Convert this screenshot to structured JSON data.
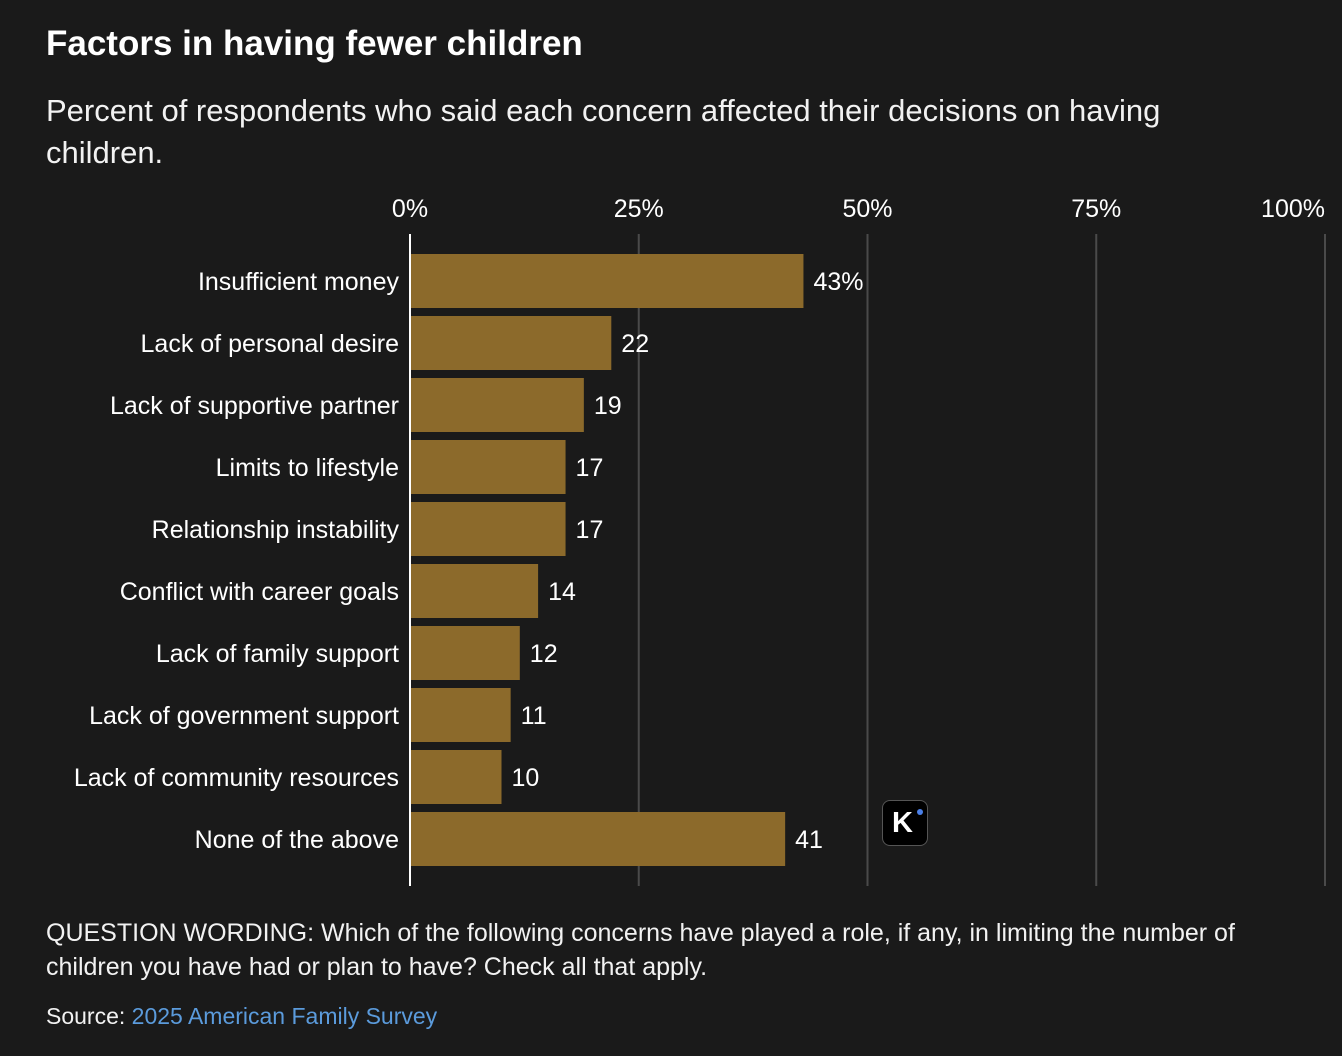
{
  "chart_data": {
    "type": "bar",
    "orientation": "horizontal",
    "title": "Factors in having fewer children",
    "subtitle": "Percent of respondents who said each concern affected their decisions on having children.",
    "categories": [
      "Insufficient money",
      "Lack of personal desire",
      "Lack of supportive partner",
      "Limits to lifestyle",
      "Relationship instability",
      "Conflict with career goals",
      "Lack of family support",
      "Lack of government support",
      "Lack of community resources",
      "None of the above"
    ],
    "values": [
      43,
      22,
      19,
      17,
      17,
      14,
      12,
      11,
      10,
      41
    ],
    "value_labels": [
      "43%",
      "22",
      "19",
      "17",
      "17",
      "14",
      "12",
      "11",
      "10",
      "41"
    ],
    "xlim": [
      0,
      100
    ],
    "x_ticks": [
      0,
      25,
      50,
      75,
      100
    ],
    "x_tick_labels": [
      "0%",
      "25%",
      "50%",
      "75%",
      "100%"
    ],
    "xlabel": "",
    "ylabel": "",
    "grid": true,
    "axis_position": "top",
    "colors": {
      "bar": "#8c6a2b",
      "grid": "#4a4a4a",
      "baseline": "#ffffff",
      "link": "#5b9bdc",
      "badge_dot": "#4a7fe8"
    }
  },
  "footer": {
    "question": "QUESTION WORDING: Which of the following concerns have played a role, if any, in limiting the number of children you have had or plan to have? Check all that apply.",
    "source_label": "Source:",
    "source_link": "2025 American Family Survey"
  },
  "watermark": {
    "letter": "K",
    "icon": "k-logo-icon"
  }
}
